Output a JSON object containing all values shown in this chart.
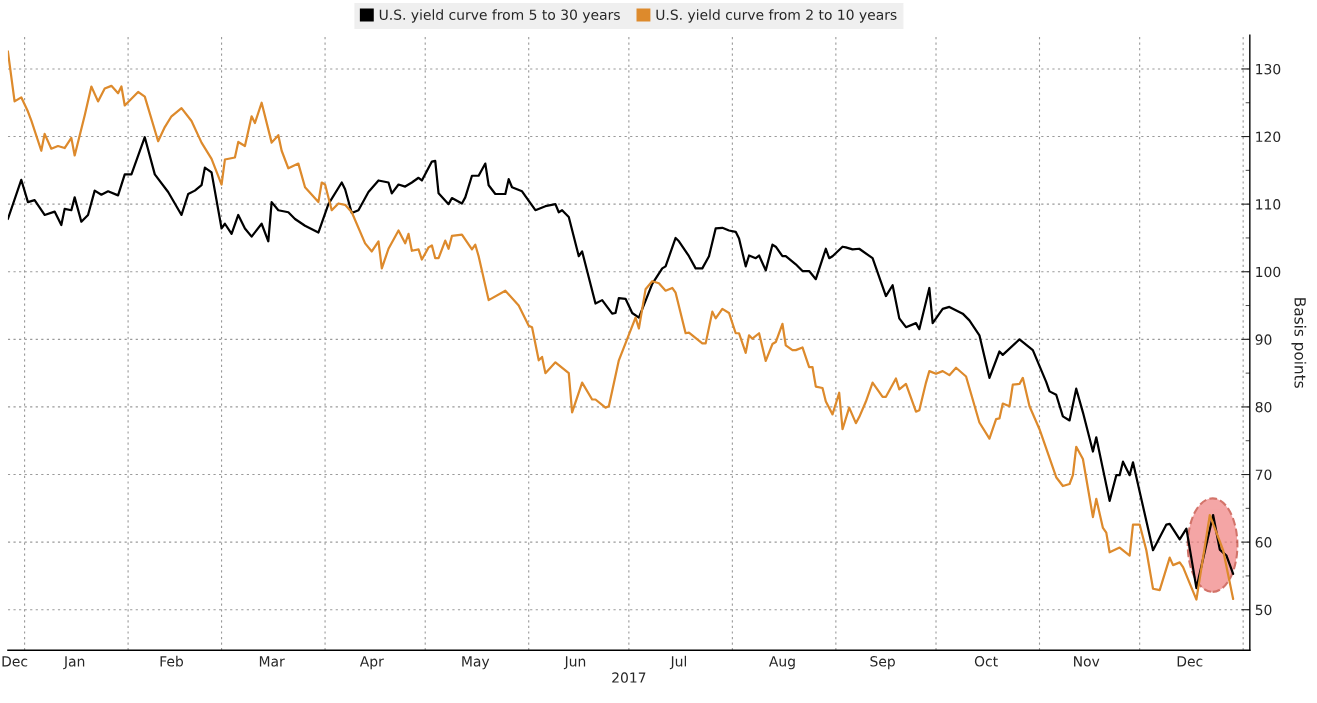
{
  "chart_data": {
    "type": "line",
    "ylabel": "Basis points",
    "xlabel": "2017",
    "series": [
      {
        "name": "U.S. yield curve from 5 to 30 years",
        "color": "#000000",
        "x": [
          "2016-12-27",
          "2016-12-31",
          "2017-01-02",
          "2017-01-04",
          "2017-01-07",
          "2017-01-10",
          "2017-01-12",
          "2017-01-13",
          "2017-01-15",
          "2017-01-16",
          "2017-01-18",
          "2017-01-20",
          "2017-01-22",
          "2017-01-24",
          "2017-01-26",
          "2017-01-29",
          "2017-01-31",
          "2017-02-02",
          "2017-02-06",
          "2017-02-09",
          "2017-02-13",
          "2017-02-17",
          "2017-02-19",
          "2017-02-21",
          "2017-02-23",
          "2017-02-24",
          "2017-02-26",
          "2017-03-01",
          "2017-03-02",
          "2017-03-04",
          "2017-03-06",
          "2017-03-08",
          "2017-03-10",
          "2017-03-13",
          "2017-03-15",
          "2017-03-16",
          "2017-03-18",
          "2017-03-21",
          "2017-03-23",
          "2017-03-26",
          "2017-03-30",
          "2017-04-02",
          "2017-04-06",
          "2017-04-07",
          "2017-04-09",
          "2017-04-11",
          "2017-04-14",
          "2017-04-17",
          "2017-04-20",
          "2017-04-21",
          "2017-04-23",
          "2017-04-25",
          "2017-04-27",
          "2017-04-29",
          "2017-04-30",
          "2017-05-03",
          "2017-05-04",
          "2017-05-05",
          "2017-05-08",
          "2017-05-09",
          "2017-05-12",
          "2017-05-13",
          "2017-05-15",
          "2017-05-17",
          "2017-05-19",
          "2017-05-20",
          "2017-05-22",
          "2017-05-25",
          "2017-05-26",
          "2017-05-27",
          "2017-05-30",
          "2017-06-03",
          "2017-06-06",
          "2017-06-09",
          "2017-06-10",
          "2017-06-11",
          "2017-06-13",
          "2017-06-16",
          "2017-06-17",
          "2017-06-21",
          "2017-06-23",
          "2017-06-26",
          "2017-06-27",
          "2017-06-28",
          "2017-06-30",
          "2017-07-02",
          "2017-07-04",
          "2017-07-08",
          "2017-07-11",
          "2017-07-12",
          "2017-07-15",
          "2017-07-16",
          "2017-07-19",
          "2017-07-21",
          "2017-07-23",
          "2017-07-25",
          "2017-07-27",
          "2017-07-29",
          "2017-07-31",
          "2017-08-02",
          "2017-08-03",
          "2017-08-05",
          "2017-08-06",
          "2017-08-08",
          "2017-08-09",
          "2017-08-11",
          "2017-08-13",
          "2017-08-14",
          "2017-08-16",
          "2017-08-17",
          "2017-08-20",
          "2017-08-22",
          "2017-08-24",
          "2017-08-26",
          "2017-08-29",
          "2017-08-30",
          "2017-08-31",
          "2017-09-03",
          "2017-09-04",
          "2017-09-06",
          "2017-09-08",
          "2017-09-12",
          "2017-09-16",
          "2017-09-18",
          "2017-09-20",
          "2017-09-22",
          "2017-09-25",
          "2017-09-26",
          "2017-09-29",
          "2017-09-30",
          "2017-10-03",
          "2017-10-05",
          "2017-10-09",
          "2017-10-11",
          "2017-10-14",
          "2017-10-17",
          "2017-10-20",
          "2017-10-21",
          "2017-10-26",
          "2017-10-30",
          "2017-11-03",
          "2017-11-04",
          "2017-11-06",
          "2017-11-08",
          "2017-11-10",
          "2017-11-12",
          "2017-11-14",
          "2017-11-17",
          "2017-11-18",
          "2017-11-22",
          "2017-11-24",
          "2017-11-25",
          "2017-11-26",
          "2017-11-28",
          "2017-11-29",
          "2017-12-05",
          "2017-12-09",
          "2017-12-10",
          "2017-12-13",
          "2017-12-15",
          "2017-12-18",
          "2017-12-23",
          "2017-12-25",
          "2017-12-27",
          "2017-12-29"
        ],
        "values": [
          107.8,
          113.6,
          110.3,
          110.6,
          108.4,
          108.9,
          106.9,
          109.3,
          109.1,
          111.0,
          107.4,
          108.4,
          112.0,
          111.4,
          111.9,
          111.3,
          114.4,
          114.4,
          119.9,
          114.4,
          111.8,
          108.4,
          111.5,
          112.0,
          112.8,
          115.4,
          114.7,
          106.4,
          107.1,
          105.6,
          108.4,
          106.4,
          105.2,
          107.1,
          104.5,
          110.3,
          109.1,
          108.8,
          107.8,
          106.8,
          105.8,
          110.0,
          113.2,
          112.2,
          108.7,
          109.1,
          111.8,
          113.5,
          113.2,
          111.6,
          112.9,
          112.6,
          113.2,
          113.9,
          113.5,
          116.3,
          116.4,
          111.6,
          110.0,
          110.9,
          110.1,
          111.0,
          114.2,
          114.2,
          116.0,
          112.8,
          111.5,
          111.5,
          113.7,
          112.5,
          111.9,
          109.1,
          109.7,
          110.0,
          108.8,
          109.1,
          108.1,
          102.3,
          103.0,
          95.3,
          95.8,
          93.8,
          93.9,
          96.1,
          96.0,
          93.9,
          93.2,
          98.2,
          100.5,
          100.8,
          105.0,
          104.5,
          102.3,
          100.5,
          100.5,
          102.3,
          106.4,
          106.5,
          106.1,
          105.9,
          104.9,
          100.8,
          102.4,
          102.0,
          102.4,
          100.2,
          104.0,
          103.7,
          102.3,
          102.3,
          101.1,
          100.1,
          100.1,
          98.9,
          103.4,
          102.0,
          102.3,
          103.7,
          103.6,
          103.3,
          103.4,
          102.0,
          96.4,
          98.0,
          93.1,
          91.8,
          92.4,
          91.5,
          97.6,
          92.4,
          94.5,
          94.8,
          93.8,
          92.8,
          90.6,
          84.3,
          88.2,
          87.7,
          90.0,
          88.4,
          83.7,
          82.3,
          81.8,
          78.6,
          78.0,
          82.7,
          79.2,
          73.4,
          75.5,
          66.1,
          69.9,
          69.9,
          71.9,
          69.9,
          71.8,
          58.8,
          62.6,
          62.7,
          60.4,
          62.0,
          53.2,
          64.0,
          58.9,
          58.0,
          55.3
        ]
      },
      {
        "name": "U.S. yield curve from 2 to 10 years",
        "color": "#dd8a2c",
        "x": [
          "2016-12-27",
          "2016-12-29",
          "2016-12-31",
          "2017-01-02",
          "2017-01-03",
          "2017-01-06",
          "2017-01-07",
          "2017-01-09",
          "2017-01-11",
          "2017-01-13",
          "2017-01-15",
          "2017-01-16",
          "2017-01-19",
          "2017-01-21",
          "2017-01-23",
          "2017-01-25",
          "2017-01-27",
          "2017-01-29",
          "2017-01-30",
          "2017-01-31",
          "2017-02-04",
          "2017-02-06",
          "2017-02-10",
          "2017-02-12",
          "2017-02-14",
          "2017-02-17",
          "2017-02-20",
          "2017-02-23",
          "2017-02-26",
          "2017-03-01",
          "2017-03-02",
          "2017-03-05",
          "2017-03-06",
          "2017-03-08",
          "2017-03-10",
          "2017-03-11",
          "2017-03-13",
          "2017-03-16",
          "2017-03-18",
          "2017-03-19",
          "2017-03-21",
          "2017-03-24",
          "2017-03-26",
          "2017-03-30",
          "2017-03-31",
          "2017-04-01",
          "2017-04-03",
          "2017-04-05",
          "2017-04-07",
          "2017-04-09",
          "2017-04-13",
          "2017-04-15",
          "2017-04-17",
          "2017-04-18",
          "2017-04-20",
          "2017-04-23",
          "2017-04-25",
          "2017-04-26",
          "2017-04-27",
          "2017-04-29",
          "2017-04-30",
          "2017-05-02",
          "2017-05-03",
          "2017-05-04",
          "2017-05-05",
          "2017-05-07",
          "2017-05-08",
          "2017-05-09",
          "2017-05-12",
          "2017-05-15",
          "2017-05-16",
          "2017-05-17",
          "2017-05-20",
          "2017-05-25",
          "2017-05-29",
          "2017-06-01",
          "2017-06-02",
          "2017-06-04",
          "2017-06-05",
          "2017-06-06",
          "2017-06-09",
          "2017-06-13",
          "2017-06-14",
          "2017-06-17",
          "2017-06-20",
          "2017-06-21",
          "2017-06-24",
          "2017-06-25",
          "2017-06-28",
          "2017-07-03",
          "2017-07-04",
          "2017-07-06",
          "2017-07-08",
          "2017-07-10",
          "2017-07-12",
          "2017-07-14",
          "2017-07-15",
          "2017-07-18",
          "2017-07-19",
          "2017-07-23",
          "2017-07-24",
          "2017-07-26",
          "2017-07-27",
          "2017-07-29",
          "2017-07-31",
          "2017-08-02",
          "2017-08-03",
          "2017-08-05",
          "2017-08-06",
          "2017-08-07",
          "2017-08-09",
          "2017-08-11",
          "2017-08-13",
          "2017-08-14",
          "2017-08-16",
          "2017-08-17",
          "2017-08-19",
          "2017-08-20",
          "2017-08-22",
          "2017-08-24",
          "2017-08-25",
          "2017-08-26",
          "2017-08-28",
          "2017-08-29",
          "2017-08-31",
          "2017-09-02",
          "2017-09-03",
          "2017-09-05",
          "2017-09-07",
          "2017-09-08",
          "2017-09-10",
          "2017-09-12",
          "2017-09-15",
          "2017-09-16",
          "2017-09-19",
          "2017-09-20",
          "2017-09-22",
          "2017-09-25",
          "2017-09-26",
          "2017-09-28",
          "2017-09-29",
          "2017-10-01",
          "2017-10-03",
          "2017-10-05",
          "2017-10-07",
          "2017-10-10",
          "2017-10-14",
          "2017-10-17",
          "2017-10-19",
          "2017-10-20",
          "2017-10-21",
          "2017-10-23",
          "2017-10-24",
          "2017-10-26",
          "2017-10-27",
          "2017-10-29",
          "2017-11-01",
          "2017-11-06",
          "2017-11-08",
          "2017-11-10",
          "2017-11-11",
          "2017-11-12",
          "2017-11-14",
          "2017-11-17",
          "2017-11-18",
          "2017-11-20",
          "2017-11-21",
          "2017-11-22",
          "2017-11-25",
          "2017-11-28",
          "2017-11-29",
          "2017-12-01",
          "2017-12-03",
          "2017-12-05",
          "2017-12-07",
          "2017-12-10",
          "2017-12-11",
          "2017-12-13",
          "2017-12-14",
          "2017-12-18",
          "2017-12-22",
          "2017-12-24",
          "2017-12-26",
          "2017-12-29"
        ],
        "values": [
          132.6,
          125.2,
          125.8,
          123.7,
          122.4,
          117.9,
          120.4,
          118.2,
          118.6,
          118.3,
          119.8,
          117.2,
          123.1,
          127.4,
          125.2,
          127.1,
          127.5,
          126.4,
          127.4,
          124.6,
          126.6,
          125.9,
          119.3,
          121.4,
          123.0,
          124.2,
          122.3,
          119.1,
          116.7,
          112.9,
          116.6,
          116.9,
          119.2,
          118.6,
          123.0,
          122.0,
          125.0,
          119.1,
          120.2,
          117.9,
          115.3,
          116.0,
          112.5,
          110.3,
          113.2,
          112.9,
          109.1,
          110.1,
          109.9,
          108.8,
          104.2,
          103.0,
          104.5,
          100.5,
          103.4,
          106.1,
          104.2,
          105.6,
          103.1,
          103.3,
          101.8,
          103.6,
          103.9,
          102.0,
          102.0,
          104.6,
          103.4,
          105.3,
          105.5,
          103.3,
          104.0,
          102.3,
          95.8,
          97.2,
          95.0,
          92.0,
          91.8,
          86.9,
          87.4,
          85.0,
          86.6,
          85.0,
          79.2,
          83.6,
          81.1,
          81.1,
          79.9,
          80.1,
          86.9,
          93.2,
          91.6,
          97.4,
          98.6,
          98.3,
          97.2,
          97.6,
          96.9,
          90.9,
          91.0,
          89.4,
          89.4,
          94.1,
          93.1,
          94.5,
          93.9,
          90.9,
          90.9,
          88.0,
          90.6,
          90.1,
          90.9,
          86.8,
          89.3,
          89.6,
          92.3,
          89.1,
          88.4,
          88.4,
          88.8,
          85.9,
          85.9,
          83.0,
          82.8,
          80.8,
          78.9,
          82.1,
          76.7,
          79.9,
          77.6,
          78.5,
          80.8,
          83.6,
          81.5,
          81.5,
          84.2,
          82.6,
          83.4,
          79.3,
          79.5,
          83.6,
          85.3,
          84.9,
          85.3,
          84.7,
          85.8,
          84.5,
          77.7,
          75.3,
          78.2,
          78.3,
          80.5,
          80.1,
          83.3,
          83.4,
          84.3,
          80.1,
          76.7,
          69.6,
          68.3,
          68.6,
          69.9,
          74.1,
          72.3,
          63.7,
          66.4,
          62.1,
          61.4,
          58.5,
          59.2,
          58.0,
          62.6,
          62.6,
          58.8,
          53.1,
          52.9,
          57.7,
          56.6,
          57.0,
          56.3,
          51.5,
          64.0,
          61.4,
          58.8,
          51.6
        ]
      }
    ],
    "xlim": [
      "2016-12-27",
      "2018-01-03"
    ],
    "xticks": [
      {
        "value": "2017-01-01",
        "label": null
      },
      {
        "value": "2017-02-01",
        "label": null
      },
      {
        "value": "2017-03-01",
        "label": null
      },
      {
        "value": "2017-04-01",
        "label": null
      },
      {
        "value": "2017-05-01",
        "label": null
      },
      {
        "value": "2017-06-01",
        "label": null
      },
      {
        "value": "2017-07-01",
        "label": null
      },
      {
        "value": "2017-08-01",
        "label": null
      },
      {
        "value": "2017-09-01",
        "label": null
      },
      {
        "value": "2017-10-01",
        "label": null
      },
      {
        "value": "2017-11-01",
        "label": null
      },
      {
        "value": "2017-12-01",
        "label": null
      },
      {
        "value": "2018-01-01",
        "label": null
      },
      {
        "value": "2016-12-29",
        "label": "Dec"
      },
      {
        "value": "2017-01-16",
        "label": "Jan"
      },
      {
        "value": "2017-02-14",
        "label": "Feb"
      },
      {
        "value": "2017-03-16",
        "label": "Mar"
      },
      {
        "value": "2017-04-15",
        "label": "Apr"
      },
      {
        "value": "2017-05-16",
        "label": "May"
      },
      {
        "value": "2017-06-15",
        "label": "Jun"
      },
      {
        "value": "2017-07-16",
        "label": "Jul"
      },
      {
        "value": "2017-08-16",
        "label": "Aug"
      },
      {
        "value": "2017-09-15",
        "label": "Sep"
      },
      {
        "value": "2017-10-16",
        "label": "Oct"
      },
      {
        "value": "2017-11-15",
        "label": "Nov"
      },
      {
        "value": "2017-12-16",
        "label": "Dec"
      }
    ],
    "ylim": [
      44,
      135
    ],
    "yticks": [
      50,
      {
        "value": 55,
        "label": null
      },
      60,
      {
        "value": 65,
        "label": null
      },
      70,
      {
        "value": 75,
        "label": null
      },
      80,
      {
        "value": 85,
        "label": null
      },
      90,
      {
        "value": 95,
        "label": null
      },
      100,
      {
        "value": 105,
        "label": null
      },
      110,
      {
        "value": 115,
        "label": null
      },
      120,
      {
        "value": 125,
        "label": null
      },
      130
    ],
    "grid": true,
    "legend": "top",
    "line_style": "solid"
  }
}
